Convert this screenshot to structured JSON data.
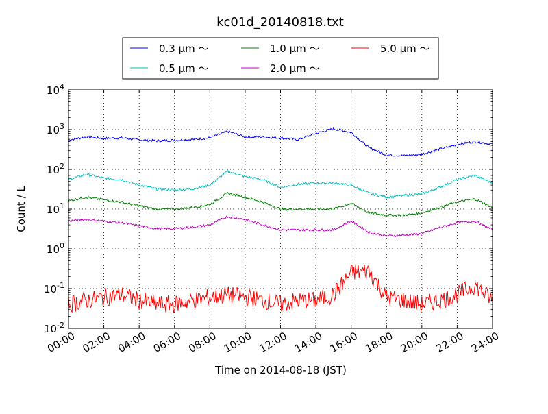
{
  "chart_data": {
    "type": "line",
    "title": "kc01d_20140818.txt",
    "xlabel": "Time on 2014-08-18 (JST)",
    "ylabel": "Count / L",
    "yscale": "log",
    "ylim": [
      0.01,
      10000
    ],
    "xlim": [
      "00:00",
      "24:00"
    ],
    "grid": true,
    "legend_position": "top",
    "x_ticks": [
      "00:00",
      "02:00",
      "04:00",
      "06:00",
      "08:00",
      "10:00",
      "12:00",
      "14:00",
      "16:00",
      "18:00",
      "20:00",
      "22:00",
      "24:00"
    ],
    "y_ticks": [
      {
        "base": "10",
        "exp": "-2",
        "value": 0.01
      },
      {
        "base": "10",
        "exp": "-1",
        "value": 0.1
      },
      {
        "base": "10",
        "exp": "0",
        "value": 1
      },
      {
        "base": "10",
        "exp": "1",
        "value": 10
      },
      {
        "base": "10",
        "exp": "2",
        "value": 100
      },
      {
        "base": "10",
        "exp": "3",
        "value": 1000
      },
      {
        "base": "10",
        "exp": "4",
        "value": 10000
      }
    ],
    "x": [
      0,
      1,
      2,
      3,
      4,
      5,
      6,
      7,
      8,
      9,
      10,
      11,
      12,
      13,
      14,
      15,
      16,
      17,
      18,
      19,
      20,
      21,
      22,
      23,
      24
    ],
    "series": [
      {
        "name": "0.3 μm ～",
        "color": "#0000ff",
        "values": [
          550,
          650,
          600,
          620,
          550,
          520,
          540,
          560,
          620,
          900,
          650,
          650,
          620,
          560,
          800,
          1050,
          850,
          350,
          230,
          220,
          240,
          320,
          420,
          500,
          430
        ]
      },
      {
        "name": "0.5 μm ～",
        "color": "#00bfbf",
        "values": [
          55,
          75,
          60,
          55,
          40,
          32,
          30,
          32,
          40,
          90,
          65,
          55,
          35,
          42,
          45,
          45,
          40,
          25,
          20,
          22,
          24,
          35,
          55,
          70,
          45
        ]
      },
      {
        "name": "1.0 μm ～",
        "color": "#008000",
        "values": [
          16,
          20,
          17,
          15,
          12,
          10,
          10,
          11,
          13,
          25,
          20,
          15,
          10,
          10,
          10,
          10,
          14,
          8,
          7,
          7,
          8,
          11,
          15,
          18,
          11
        ]
      },
      {
        "name": "2.0 μm ～",
        "color": "#bf00bf",
        "values": [
          5,
          5.5,
          5,
          4.5,
          3.8,
          3.2,
          3.2,
          3.5,
          4,
          6.5,
          5.5,
          4,
          3,
          3,
          3,
          3,
          5,
          2.6,
          2.1,
          2.2,
          2.4,
          3.4,
          4.5,
          5,
          3
        ]
      },
      {
        "name": "5.0 μm ～",
        "color": "#ff0000",
        "values": [
          0.04,
          0.05,
          0.06,
          0.07,
          0.05,
          0.04,
          0.04,
          0.05,
          0.06,
          0.07,
          0.06,
          0.05,
          0.04,
          0.05,
          0.05,
          0.07,
          0.25,
          0.28,
          0.06,
          0.05,
          0.04,
          0.05,
          0.07,
          0.12,
          0.05
        ]
      }
    ]
  }
}
